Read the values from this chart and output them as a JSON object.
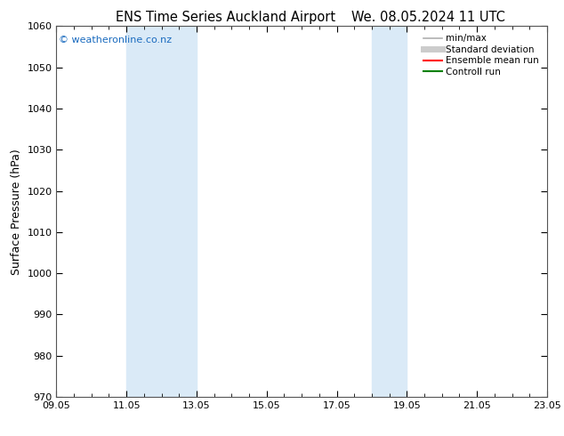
{
  "title_left": "ENS Time Series Auckland Airport",
  "title_right": "We. 08.05.2024 11 UTC",
  "ylabel": "Surface Pressure (hPa)",
  "ylim": [
    970,
    1060
  ],
  "yticks": [
    970,
    980,
    990,
    1000,
    1010,
    1020,
    1030,
    1040,
    1050,
    1060
  ],
  "xtick_labels": [
    "09.05",
    "11.05",
    "13.05",
    "15.05",
    "17.05",
    "19.05",
    "21.05",
    "23.05"
  ],
  "xtick_positions": [
    0,
    2,
    4,
    6,
    8,
    10,
    12,
    14
  ],
  "shaded_bands": [
    {
      "x_start": 2,
      "x_end": 4
    },
    {
      "x_start": 9.0,
      "x_end": 10.0
    }
  ],
  "shaded_color": "#daeaf7",
  "watermark_text": "© weatheronline.co.nz",
  "watermark_color": "#1a6bbf",
  "legend_entries": [
    {
      "label": "min/max",
      "color": "#b0b0b0",
      "lw": 1.2,
      "ls": "-"
    },
    {
      "label": "Standard deviation",
      "color": "#cccccc",
      "lw": 5,
      "ls": "-"
    },
    {
      "label": "Ensemble mean run",
      "color": "red",
      "lw": 1.5,
      "ls": "-"
    },
    {
      "label": "Controll run",
      "color": "green",
      "lw": 1.5,
      "ls": "-"
    }
  ],
  "bg_color": "#ffffff",
  "plot_bg_color": "#ffffff",
  "spine_color": "#555555",
  "title_fontsize": 10.5,
  "axis_label_fontsize": 9,
  "tick_fontsize": 8,
  "legend_fontsize": 7.5,
  "watermark_fontsize": 8
}
